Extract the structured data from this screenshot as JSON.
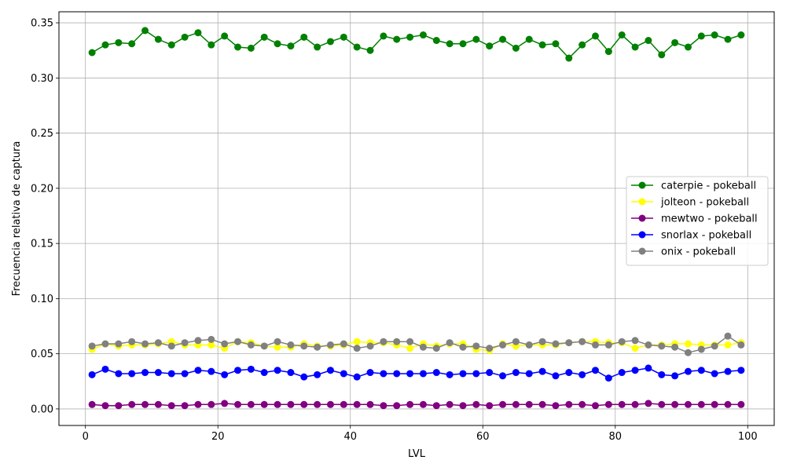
{
  "chart_data": {
    "type": "line",
    "title": "",
    "xlabel": "LVL",
    "ylabel": "Frecuencia relativa de captura",
    "xlim": [
      -4,
      104
    ],
    "ylim": [
      -0.015,
      0.36
    ],
    "x_ticks": [
      0,
      20,
      40,
      60,
      80,
      100
    ],
    "y_ticks": [
      0.0,
      0.05,
      0.1,
      0.15,
      0.2,
      0.25,
      0.3,
      0.35
    ],
    "y_tick_labels": [
      "0.00",
      "0.05",
      "0.10",
      "0.15",
      "0.20",
      "0.25",
      "0.30",
      "0.35"
    ],
    "grid": true,
    "legend_position": "center-right",
    "x": [
      1,
      3,
      5,
      7,
      9,
      11,
      13,
      15,
      17,
      19,
      21,
      23,
      25,
      27,
      29,
      31,
      33,
      35,
      37,
      39,
      41,
      43,
      45,
      47,
      49,
      51,
      53,
      55,
      57,
      59,
      61,
      63,
      65,
      67,
      69,
      71,
      73,
      75,
      77,
      79,
      81,
      83,
      85,
      87,
      89,
      91,
      93,
      95,
      97,
      99
    ],
    "series": [
      {
        "name": "caterpie - pokeball",
        "color": "#008000",
        "values": [
          0.323,
          0.33,
          0.332,
          0.331,
          0.343,
          0.335,
          0.33,
          0.337,
          0.341,
          0.33,
          0.338,
          0.328,
          0.327,
          0.337,
          0.331,
          0.329,
          0.337,
          0.328,
          0.333,
          0.337,
          0.328,
          0.325,
          0.338,
          0.335,
          0.337,
          0.339,
          0.334,
          0.331,
          0.331,
          0.335,
          0.329,
          0.335,
          0.327,
          0.335,
          0.33,
          0.331,
          0.318,
          0.33,
          0.338,
          0.324,
          0.339,
          0.328,
          0.334,
          0.321,
          0.332,
          0.328,
          0.338,
          0.339,
          0.335,
          0.339
        ]
      },
      {
        "name": "jolteon - pokeball",
        "color": "#ffff00",
        "values": [
          0.054,
          0.059,
          0.057,
          0.058,
          0.058,
          0.059,
          0.061,
          0.058,
          0.058,
          0.058,
          0.055,
          0.061,
          0.06,
          0.057,
          0.056,
          0.056,
          0.059,
          0.057,
          0.057,
          0.058,
          0.061,
          0.06,
          0.06,
          0.058,
          0.055,
          0.059,
          0.057,
          0.059,
          0.059,
          0.054,
          0.053,
          0.059,
          0.057,
          0.058,
          0.058,
          0.058,
          0.06,
          0.061,
          0.061,
          0.06,
          0.06,
          0.055,
          0.058,
          0.058,
          0.059,
          0.059,
          0.058,
          0.058,
          0.058,
          0.06
        ]
      },
      {
        "name": "mewtwo - pokeball",
        "color": "#800080",
        "values": [
          0.004,
          0.003,
          0.003,
          0.004,
          0.004,
          0.004,
          0.003,
          0.003,
          0.004,
          0.004,
          0.005,
          0.004,
          0.004,
          0.004,
          0.004,
          0.004,
          0.004,
          0.004,
          0.004,
          0.004,
          0.004,
          0.004,
          0.003,
          0.003,
          0.004,
          0.004,
          0.003,
          0.004,
          0.003,
          0.004,
          0.003,
          0.004,
          0.004,
          0.004,
          0.004,
          0.003,
          0.004,
          0.004,
          0.003,
          0.004,
          0.004,
          0.004,
          0.005,
          0.004,
          0.004,
          0.004,
          0.004,
          0.004,
          0.004,
          0.004
        ]
      },
      {
        "name": "snorlax - pokeball",
        "color": "#0000ff",
        "values": [
          0.031,
          0.036,
          0.032,
          0.032,
          0.033,
          0.033,
          0.032,
          0.032,
          0.035,
          0.034,
          0.031,
          0.035,
          0.036,
          0.033,
          0.035,
          0.033,
          0.029,
          0.031,
          0.035,
          0.032,
          0.029,
          0.033,
          0.032,
          0.032,
          0.032,
          0.032,
          0.033,
          0.031,
          0.032,
          0.032,
          0.033,
          0.03,
          0.033,
          0.032,
          0.034,
          0.03,
          0.033,
          0.031,
          0.035,
          0.028,
          0.033,
          0.035,
          0.037,
          0.031,
          0.03,
          0.034,
          0.035,
          0.032,
          0.034,
          0.035
        ]
      },
      {
        "name": "onix - pokeball",
        "color": "#808080",
        "values": [
          0.057,
          0.059,
          0.059,
          0.061,
          0.059,
          0.06,
          0.057,
          0.06,
          0.062,
          0.063,
          0.059,
          0.061,
          0.058,
          0.057,
          0.061,
          0.058,
          0.057,
          0.056,
          0.058,
          0.059,
          0.055,
          0.057,
          0.061,
          0.061,
          0.061,
          0.056,
          0.055,
          0.06,
          0.056,
          0.057,
          0.055,
          0.058,
          0.061,
          0.058,
          0.061,
          0.059,
          0.06,
          0.061,
          0.058,
          0.058,
          0.061,
          0.062,
          0.058,
          0.057,
          0.056,
          0.051,
          0.054,
          0.057,
          0.066,
          0.058
        ]
      }
    ]
  }
}
